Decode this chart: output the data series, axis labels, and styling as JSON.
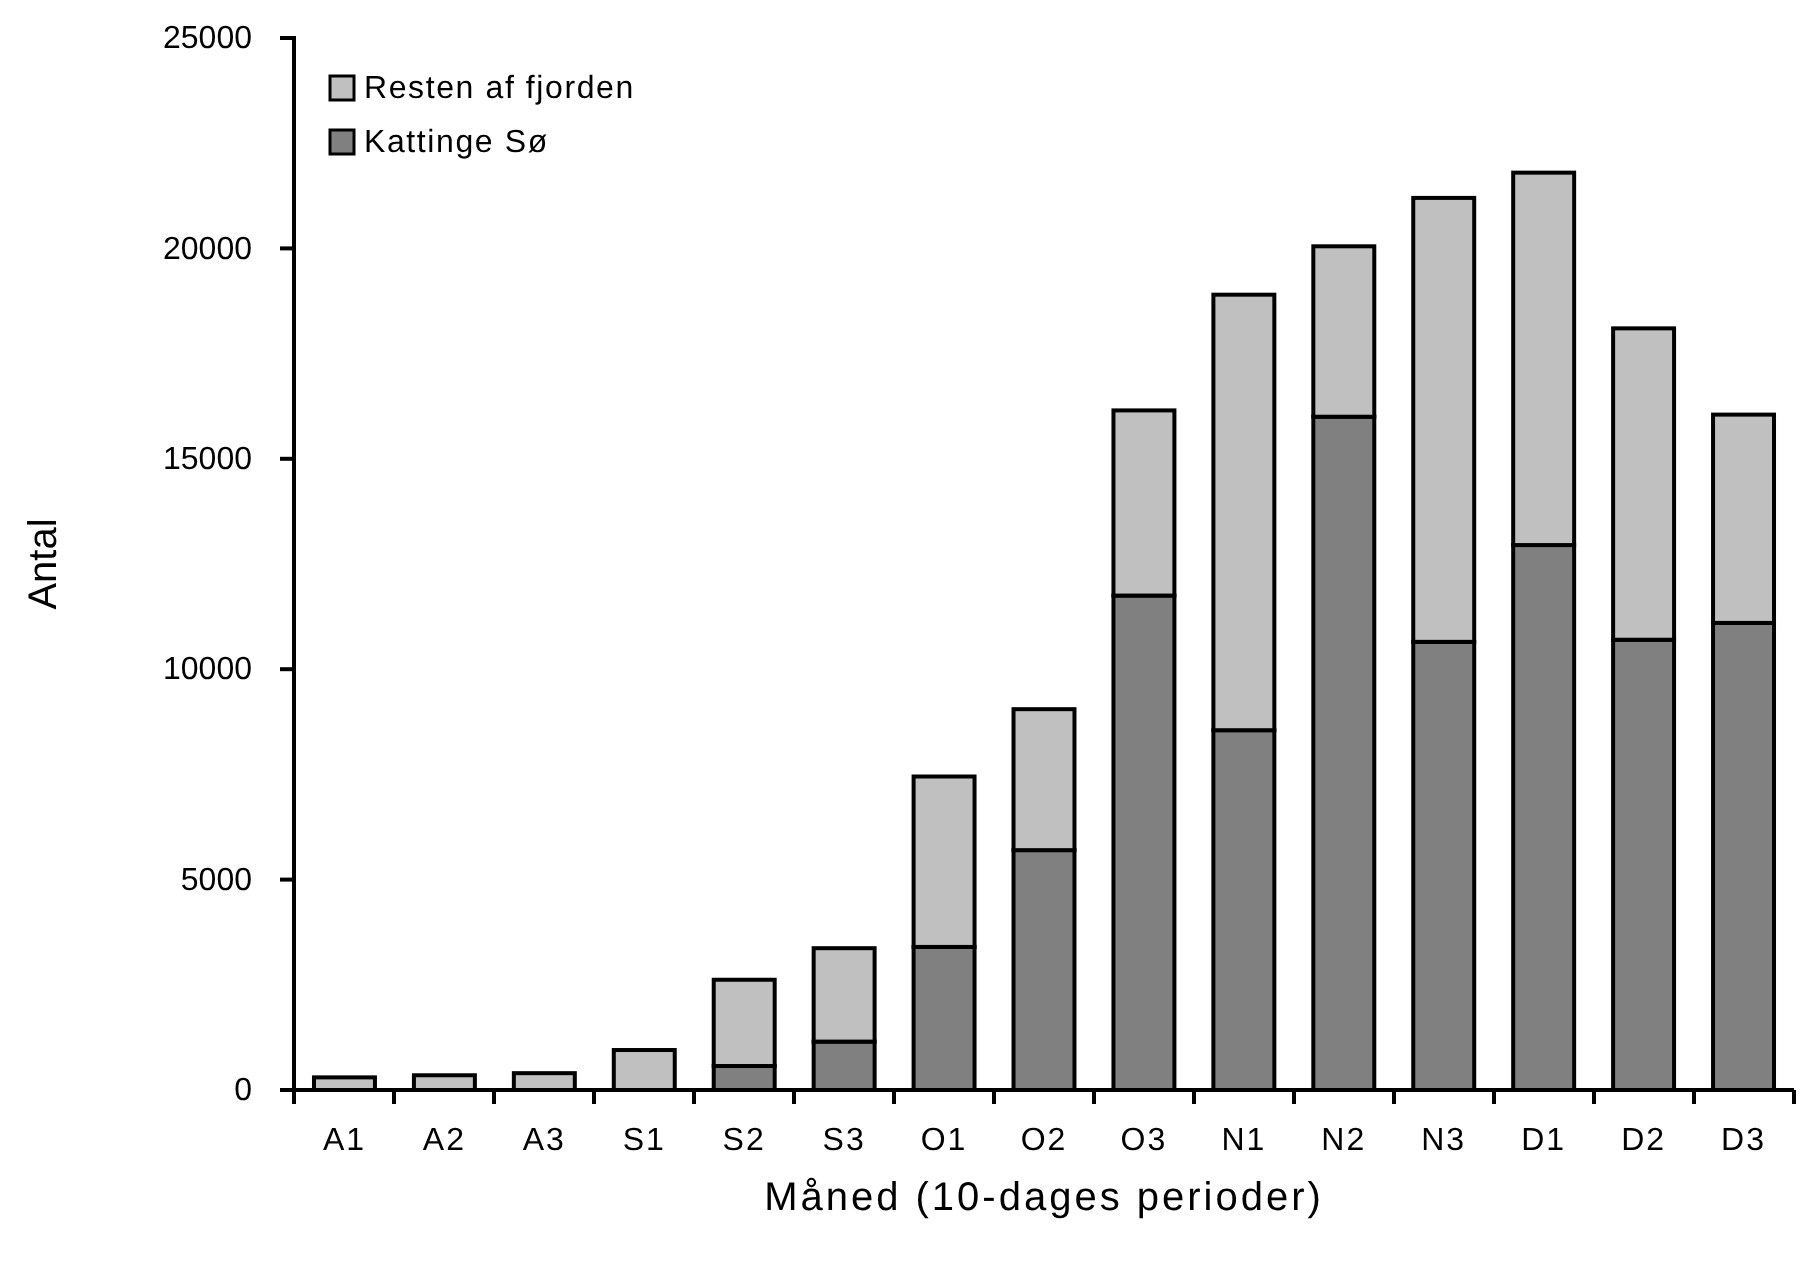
{
  "chart_data": {
    "type": "bar",
    "stacked": true,
    "xlabel": "Måned (10-dages perioder)",
    "ylabel": "Antal",
    "categories": [
      "A1",
      "A2",
      "A3",
      "S1",
      "S2",
      "S3",
      "O1",
      "O2",
      "O3",
      "N1",
      "N2",
      "N3",
      "D1",
      "D2",
      "D3"
    ],
    "series": [
      {
        "name": "Kattinge Sø",
        "color": "#808080",
        "values": [
          0,
          0,
          0,
          0,
          570,
          1150,
          3400,
          5700,
          11750,
          8550,
          16000,
          10650,
          12950,
          10700,
          11100
        ]
      },
      {
        "name": "Resten af fjorden",
        "color": "#c0c0c0",
        "values": [
          300,
          350,
          400,
          950,
          2050,
          2220,
          4050,
          3350,
          4400,
          10350,
          4050,
          10550,
          8850,
          7400,
          4950
        ]
      }
    ],
    "ylim": [
      0,
      25000
    ],
    "yticks": [
      0,
      5000,
      10000,
      15000,
      20000,
      25000
    ],
    "grid": false,
    "legend": "top left"
  }
}
